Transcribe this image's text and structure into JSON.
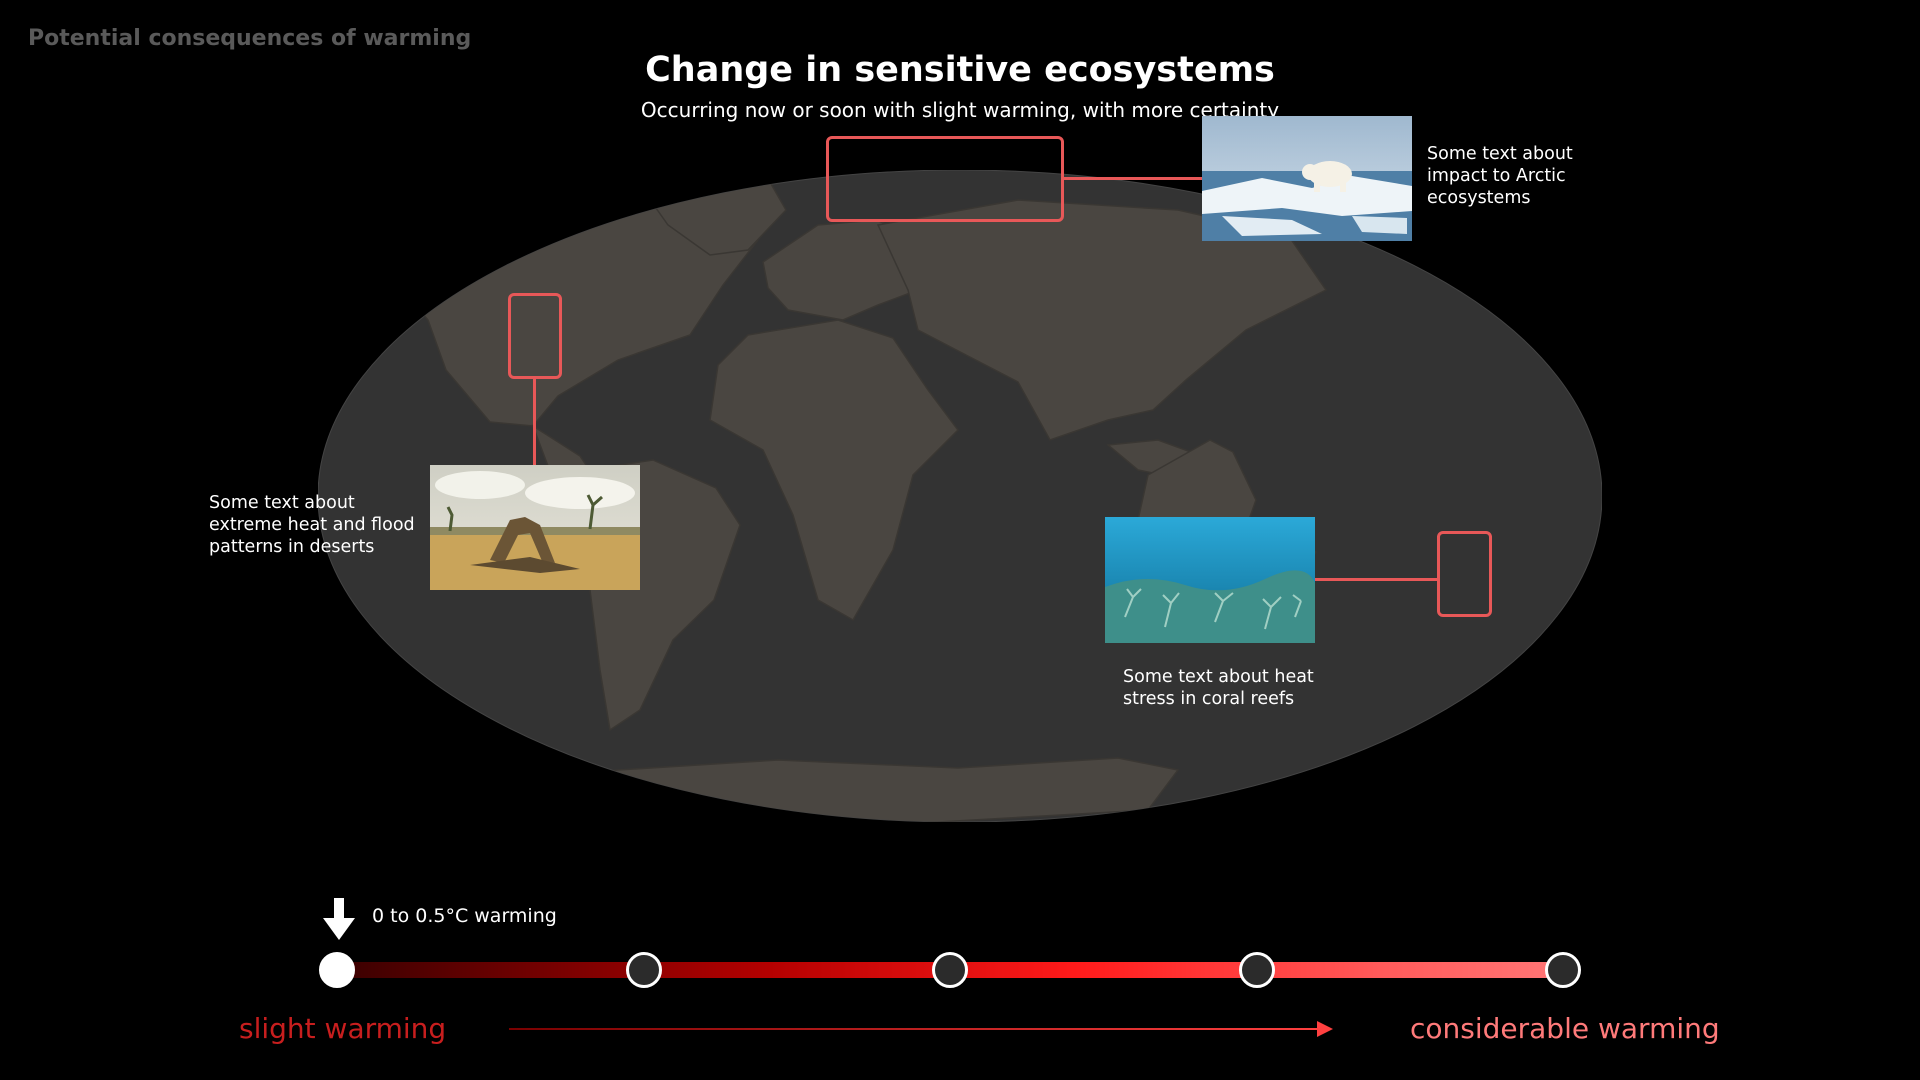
{
  "header": {
    "kicker": "Potential consequences of warming",
    "title": "Change in sensitive ecosystems",
    "subtitle": "Occurring now or soon with slight warming, with more certainty"
  },
  "callouts": {
    "arctic": {
      "caption": "Some text about\nimpact to Arctic\necosystems",
      "photo_icon": "polar-bear-on-ice-photo"
    },
    "desert": {
      "caption": "Some text about\nextreme heat and flood\npatterns in deserts",
      "photo_icon": "joshua-tree-desert-photo"
    },
    "coral": {
      "caption": "Some text about heat\nstress in coral reefs",
      "photo_icon": "coral-reef-photo"
    }
  },
  "warming_scale": {
    "current_label": "0 to 0.5°C warming",
    "current_step": 0,
    "steps": 5,
    "start_label": "slight warming",
    "end_label": "considerable warming",
    "colors": {
      "start": "#c81e1e",
      "end": "#ff7a7a",
      "highlight": "#e85858"
    }
  }
}
